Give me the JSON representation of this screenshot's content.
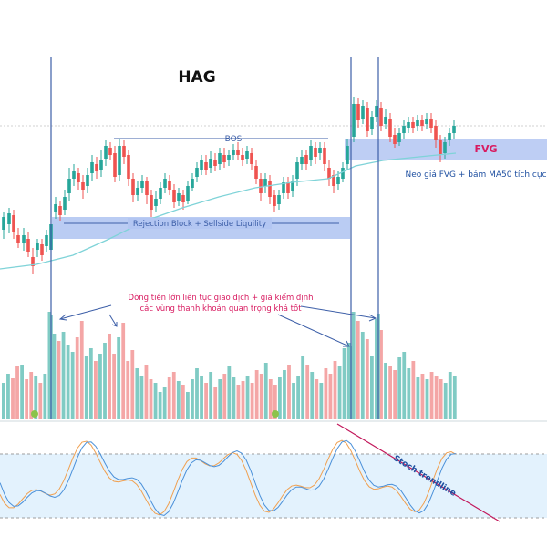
{
  "chart_data": {
    "type": "candlestick",
    "title": "HAG",
    "annotations": {
      "bos": "BOS",
      "fvg": "FVG",
      "rejection_block": "Rejection Block + Sellside Liquility",
      "fvg_note": "Neo giá FVG  + bám MA50 tích cực",
      "cashflow_line1": "Dòng tiền lớn liên tục giao dịch + giá kiểm định",
      "cashflow_line2": "các vùng thanh khoản quan trọng khá tốt",
      "stoch_trendline": "Stoch trendline"
    },
    "colors": {
      "up": "#26a69a",
      "down": "#ef5350",
      "vol_up": "#80cbc4",
      "vol_down": "#f4a6a6",
      "zone": "#b3c6f2",
      "ma": "#7fd3d8",
      "vline": "#3d5fa8",
      "annotation_red": "#d81b60",
      "annotation_blue": "#1e4fa0",
      "stoch_k": "#4a90d9",
      "stoch_d": "#f0a050",
      "stoch_band": "#e3f2fd",
      "trendline": "#c2185b"
    }
  }
}
